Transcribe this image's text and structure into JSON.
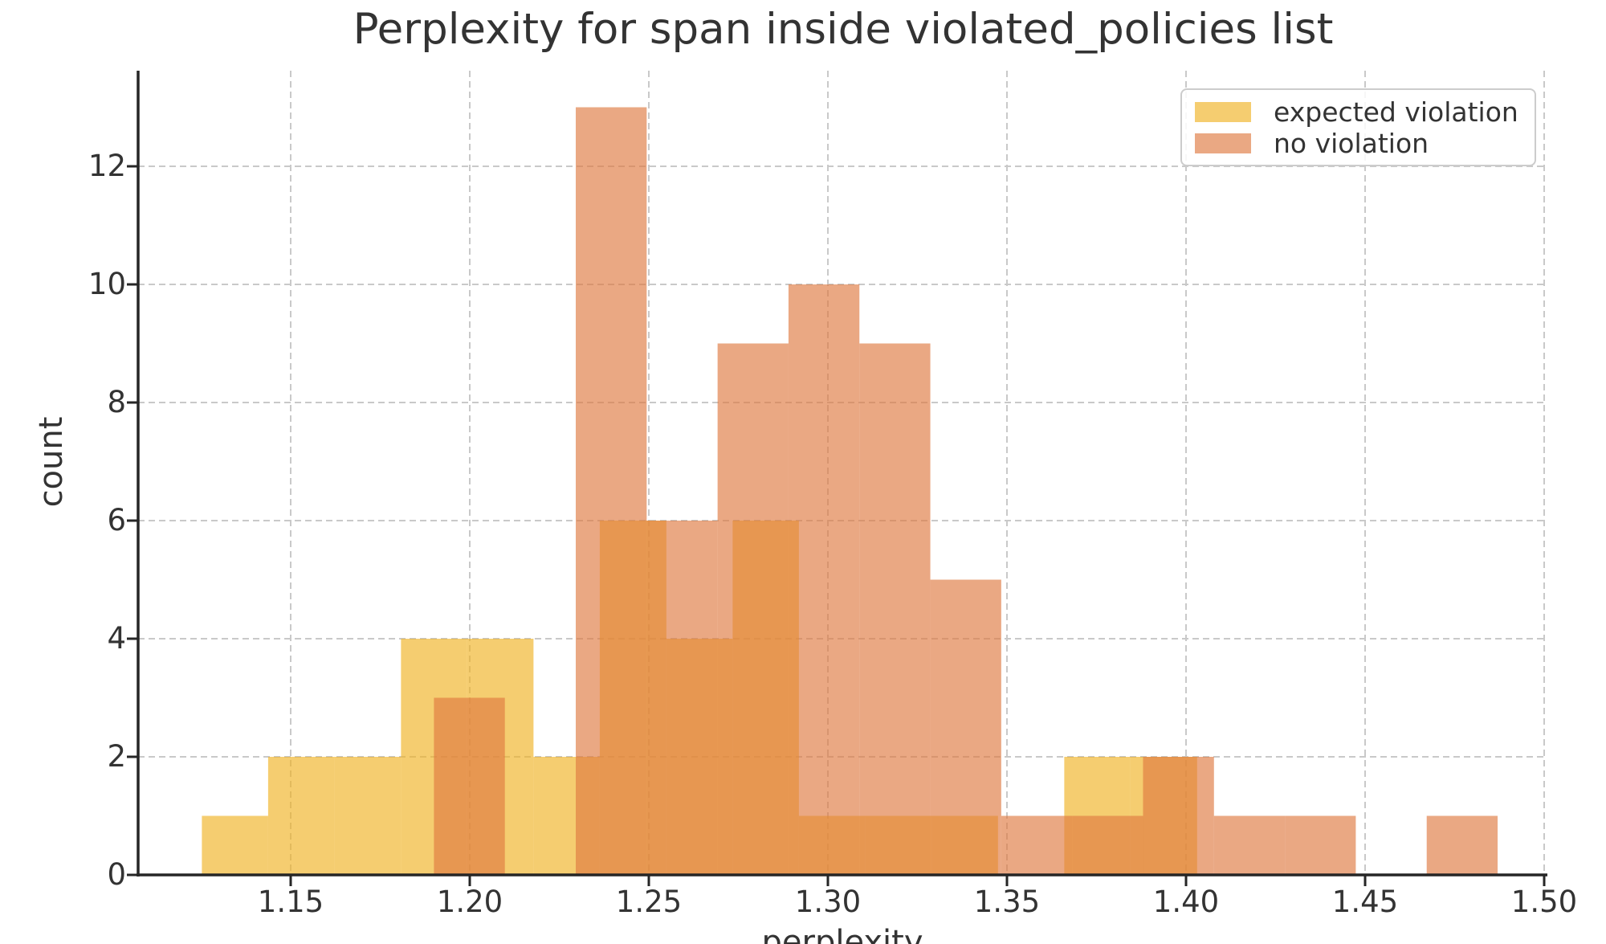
{
  "title": "Perplexity for span inside violated_policies list",
  "axes": {
    "xlabel": "perplexity",
    "ylabel": "count",
    "x_tick_values": [
      1.15,
      1.2,
      1.25,
      1.3,
      1.35,
      1.4,
      1.45,
      1.5
    ],
    "x_tick_labels": [
      "1.15",
      "1.20",
      "1.25",
      "1.30",
      "1.35",
      "1.40",
      "1.45",
      "1.50"
    ],
    "y_tick_values": [
      0,
      2,
      4,
      6,
      8,
      10,
      12
    ],
    "y_tick_labels": [
      "0",
      "2",
      "4",
      "6",
      "8",
      "10",
      "12"
    ],
    "xlim": [
      1.107,
      1.501
    ],
    "ylim": [
      0,
      13.7
    ],
    "grid": true
  },
  "legend": {
    "position": "upper right",
    "items": [
      {
        "label": "expected violation",
        "color": "#f5cd70"
      },
      {
        "label": "no violation",
        "color": "#eaa883"
      }
    ]
  },
  "chart_data": {
    "type": "histogram",
    "title": "Perplexity for span inside violated_policies list",
    "xlabel": "perplexity",
    "ylabel": "count",
    "grid": true,
    "legend_position": "upper right",
    "series": [
      {
        "name": "expected violation",
        "color": "#f0b223",
        "opacity": 0.65,
        "bin_edges": [
          1.1252,
          1.1437,
          1.1622,
          1.1808,
          1.1993,
          1.2178,
          1.2363,
          1.2549,
          1.2734,
          1.2919,
          1.3104,
          1.329,
          1.3475,
          1.366,
          1.3845,
          1.4031
        ],
        "counts": [
          1,
          2,
          2,
          4,
          4,
          2,
          6,
          4,
          6,
          1,
          1,
          1,
          0,
          2,
          2
        ]
      },
      {
        "name": "no violation",
        "color": "#df7940",
        "opacity": 0.65,
        "bin_edges": [
          1.19,
          1.2098,
          1.2296,
          1.2494,
          1.2692,
          1.289,
          1.3088,
          1.3286,
          1.3484,
          1.3682,
          1.388,
          1.4078,
          1.4276,
          1.4474,
          1.4672,
          1.487
        ],
        "counts": [
          3,
          0,
          13,
          6,
          9,
          10,
          9,
          5,
          1,
          1,
          2,
          1,
          1,
          0,
          1
        ]
      }
    ]
  },
  "colors": {
    "background": "#ffffff",
    "grid": "#c9c9c9",
    "spine": "#262626",
    "text": "#333333",
    "overlap": "#e69651"
  }
}
